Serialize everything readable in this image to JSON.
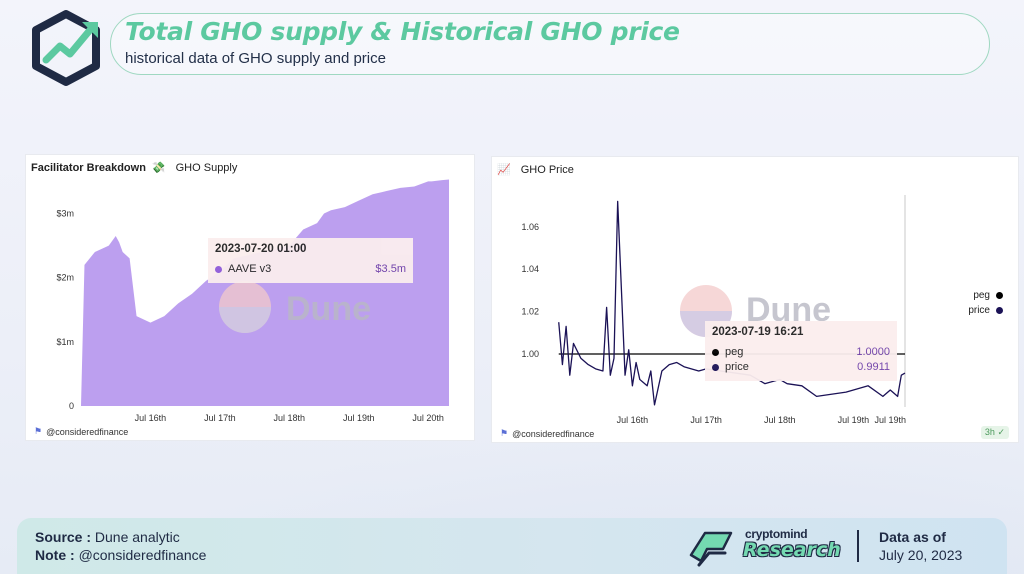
{
  "header": {
    "title": "Total GHO supply & Historical GHO price",
    "subtitle": "historical data of GHO supply and price",
    "logo_icon": "trend-arrow-hexagon-icon"
  },
  "colors": {
    "accent_green": "#5cc9a0",
    "supply_fill": "#b89aee",
    "price_line": "#1b1256",
    "peg_line": "#000000"
  },
  "left_card": {
    "heading": "Facilitator Breakdown",
    "heading_icon": "money-with-wings-icon",
    "tab": "GHO Supply",
    "watermark": "Dune",
    "footer": "@consideredfinance",
    "tooltip": {
      "date": "2023-07-20 01:00",
      "series": "AAVE v3",
      "value": "$3.5m"
    }
  },
  "right_card": {
    "heading_icon": "chart-increasing-icon",
    "tab": "GHO Price",
    "watermark": "Dune",
    "footer": "@consideredfinance",
    "badge": "3h",
    "tooltip": {
      "date": "2023-07-19 16:21",
      "rows": [
        {
          "name": "peg",
          "value": "1.0000"
        },
        {
          "name": "price",
          "value": "0.9911"
        }
      ]
    },
    "legend": [
      {
        "name": "peg"
      },
      {
        "name": "price"
      }
    ]
  },
  "footer": {
    "source_label": "Source :",
    "source_value": "Dune analytic",
    "note_label": "Note :",
    "note_value": "@consideredfinance",
    "brand_top": "cryptomind",
    "brand_main": "Research",
    "asof_label": "Data as of",
    "asof_date": "July 20, 2023"
  },
  "chart_data": [
    {
      "type": "area",
      "title": "",
      "series": [
        {
          "name": "AAVE v3",
          "x": [
            15.0,
            15.05,
            15.2,
            15.4,
            15.5,
            15.55,
            15.6,
            15.7,
            15.8,
            16.0,
            16.2,
            16.4,
            16.6,
            16.8,
            17.0,
            17.1,
            17.2,
            17.4,
            17.6,
            17.8,
            18.0,
            18.2,
            18.4,
            18.5,
            18.6,
            18.8,
            19.0,
            19.2,
            19.4,
            19.6,
            19.8,
            20.0,
            20.05,
            20.2,
            20.3
          ],
          "values": [
            0.0,
            2.2,
            2.4,
            2.5,
            2.65,
            2.55,
            2.4,
            2.3,
            1.4,
            1.3,
            1.4,
            1.6,
            1.75,
            1.95,
            2.1,
            2.2,
            2.3,
            2.35,
            2.4,
            2.45,
            2.5,
            2.75,
            2.85,
            3.0,
            3.05,
            3.1,
            3.2,
            3.3,
            3.35,
            3.4,
            3.42,
            3.5,
            3.5,
            3.52,
            3.53
          ]
        }
      ],
      "x_ticks": [
        "Jul 16th",
        "Jul 17th",
        "Jul 18th",
        "Jul 19th",
        "Jul 20th"
      ],
      "y_ticks": [
        "0",
        "$1m",
        "$2m",
        "$3m"
      ],
      "ylim": [
        0,
        3.6
      ],
      "xlim": [
        15.0,
        20.3
      ]
    },
    {
      "type": "line",
      "title": "",
      "series": [
        {
          "name": "peg",
          "x": [
            15.0,
            19.7
          ],
          "values": [
            1.0,
            1.0
          ]
        },
        {
          "name": "price",
          "x": [
            15.0,
            15.05,
            15.1,
            15.15,
            15.2,
            15.3,
            15.4,
            15.5,
            15.6,
            15.65,
            15.7,
            15.75,
            15.8,
            15.9,
            15.95,
            16.0,
            16.05,
            16.1,
            16.2,
            16.25,
            16.3,
            16.4,
            16.5,
            16.6,
            16.7,
            16.8,
            16.9,
            17.0,
            17.2,
            17.4,
            17.6,
            17.8,
            18.0,
            18.1,
            18.3,
            18.5,
            18.7,
            18.9,
            19.0,
            19.2,
            19.4,
            19.5,
            19.6,
            19.65,
            19.7
          ],
          "values": [
            1.015,
            0.995,
            1.013,
            0.99,
            1.005,
            0.998,
            0.995,
            0.993,
            0.992,
            1.022,
            0.99,
            0.998,
            1.072,
            0.99,
            1.002,
            0.985,
            0.996,
            0.988,
            0.985,
            0.992,
            0.976,
            0.992,
            0.995,
            0.996,
            0.994,
            0.993,
            0.992,
            0.993,
            0.992,
            0.991,
            0.99,
            0.986,
            0.988,
            0.986,
            0.985,
            0.98,
            0.981,
            0.982,
            0.983,
            0.985,
            0.98,
            0.983,
            0.98,
            0.99,
            0.991
          ]
        }
      ],
      "x_ticks": [
        "Jul 16th",
        "Jul 17th",
        "Jul 18th",
        "Jul 19th",
        "Jul 19th"
      ],
      "y_ticks": [
        "1.00",
        "1.02",
        "1.04",
        "1.06"
      ],
      "ylim": [
        0.975,
        1.075
      ],
      "xlim": [
        14.8,
        19.7
      ]
    }
  ]
}
